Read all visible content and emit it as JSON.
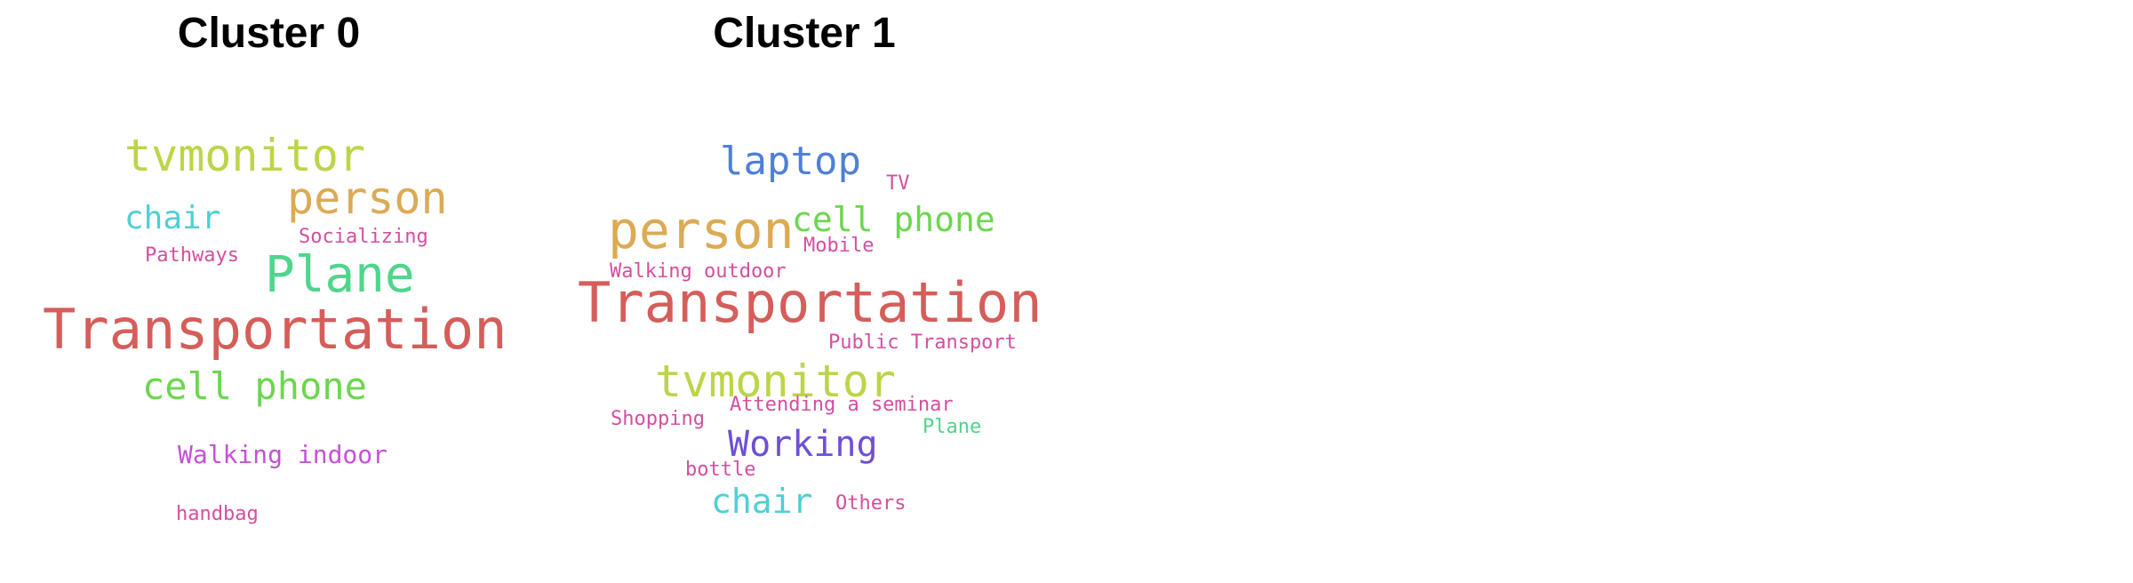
{
  "clusters": [
    {
      "title": "Cluster 0",
      "words": [
        {
          "text": "tvmonitor",
          "color": "#bcd548"
        },
        {
          "text": "person",
          "color": "#dcaa55"
        },
        {
          "text": "chair",
          "color": "#4ecfd5"
        },
        {
          "text": "Socializing",
          "color": "#d34fa0"
        },
        {
          "text": "Pathways",
          "color": "#d34fa0"
        },
        {
          "text": "Plane",
          "color": "#4fd58c"
        },
        {
          "text": "Transportation",
          "color": "#d55d5a"
        },
        {
          "text": "cell phone",
          "color": "#6cd64f"
        },
        {
          "text": "Walking indoor",
          "color": "#c452d6"
        },
        {
          "text": "handbag",
          "color": "#d34fa0"
        }
      ]
    },
    {
      "title": "Cluster 1",
      "words": [
        {
          "text": "laptop",
          "color": "#4f7fd6"
        },
        {
          "text": "TV",
          "color": "#d34fa0"
        },
        {
          "text": "person",
          "color": "#dcaa55"
        },
        {
          "text": "cell phone",
          "color": "#6cd64f"
        },
        {
          "text": "Mobile",
          "color": "#d34fa0"
        },
        {
          "text": "Walking outdoor",
          "color": "#d34fa0"
        },
        {
          "text": "Transportation",
          "color": "#d55d5a"
        },
        {
          "text": "Public Transport",
          "color": "#d34fa0"
        },
        {
          "text": "tvmonitor",
          "color": "#bcd548"
        },
        {
          "text": "Attending a seminar",
          "color": "#d34fa0"
        },
        {
          "text": "Shopping",
          "color": "#d34fa0"
        },
        {
          "text": "Plane",
          "color": "#4fd58c"
        },
        {
          "text": "Working",
          "color": "#6f4fd6"
        },
        {
          "text": "bottle",
          "color": "#d34fa0"
        },
        {
          "text": "chair",
          "color": "#4ecfd5"
        },
        {
          "text": "Others",
          "color": "#d34fa0"
        }
      ]
    }
  ]
}
